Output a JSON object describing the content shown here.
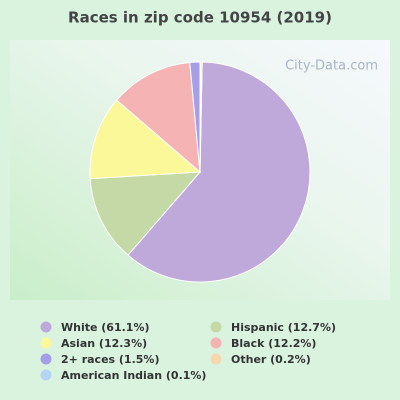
{
  "chart_data": {
    "type": "pie",
    "title": "Races in zip code 10954 (2019)",
    "watermark": "City-Data.com",
    "categories": [
      "White (61.1%)",
      "Hispanic (12.7%)",
      "Asian (12.3%)",
      "Black (12.2%)",
      "2+ races (1.5%)",
      "American Indian (0.1%)",
      "Other (0.2%)"
    ],
    "values": [
      61.1,
      12.7,
      12.3,
      12.2,
      1.5,
      0.1,
      0.2
    ],
    "colors": [
      "#bfa9da",
      "#c5d9a7",
      "#fbf89a",
      "#f5b3b3",
      "#a69ee8",
      "#b5d4f4",
      "#f6d8ae"
    ]
  }
}
